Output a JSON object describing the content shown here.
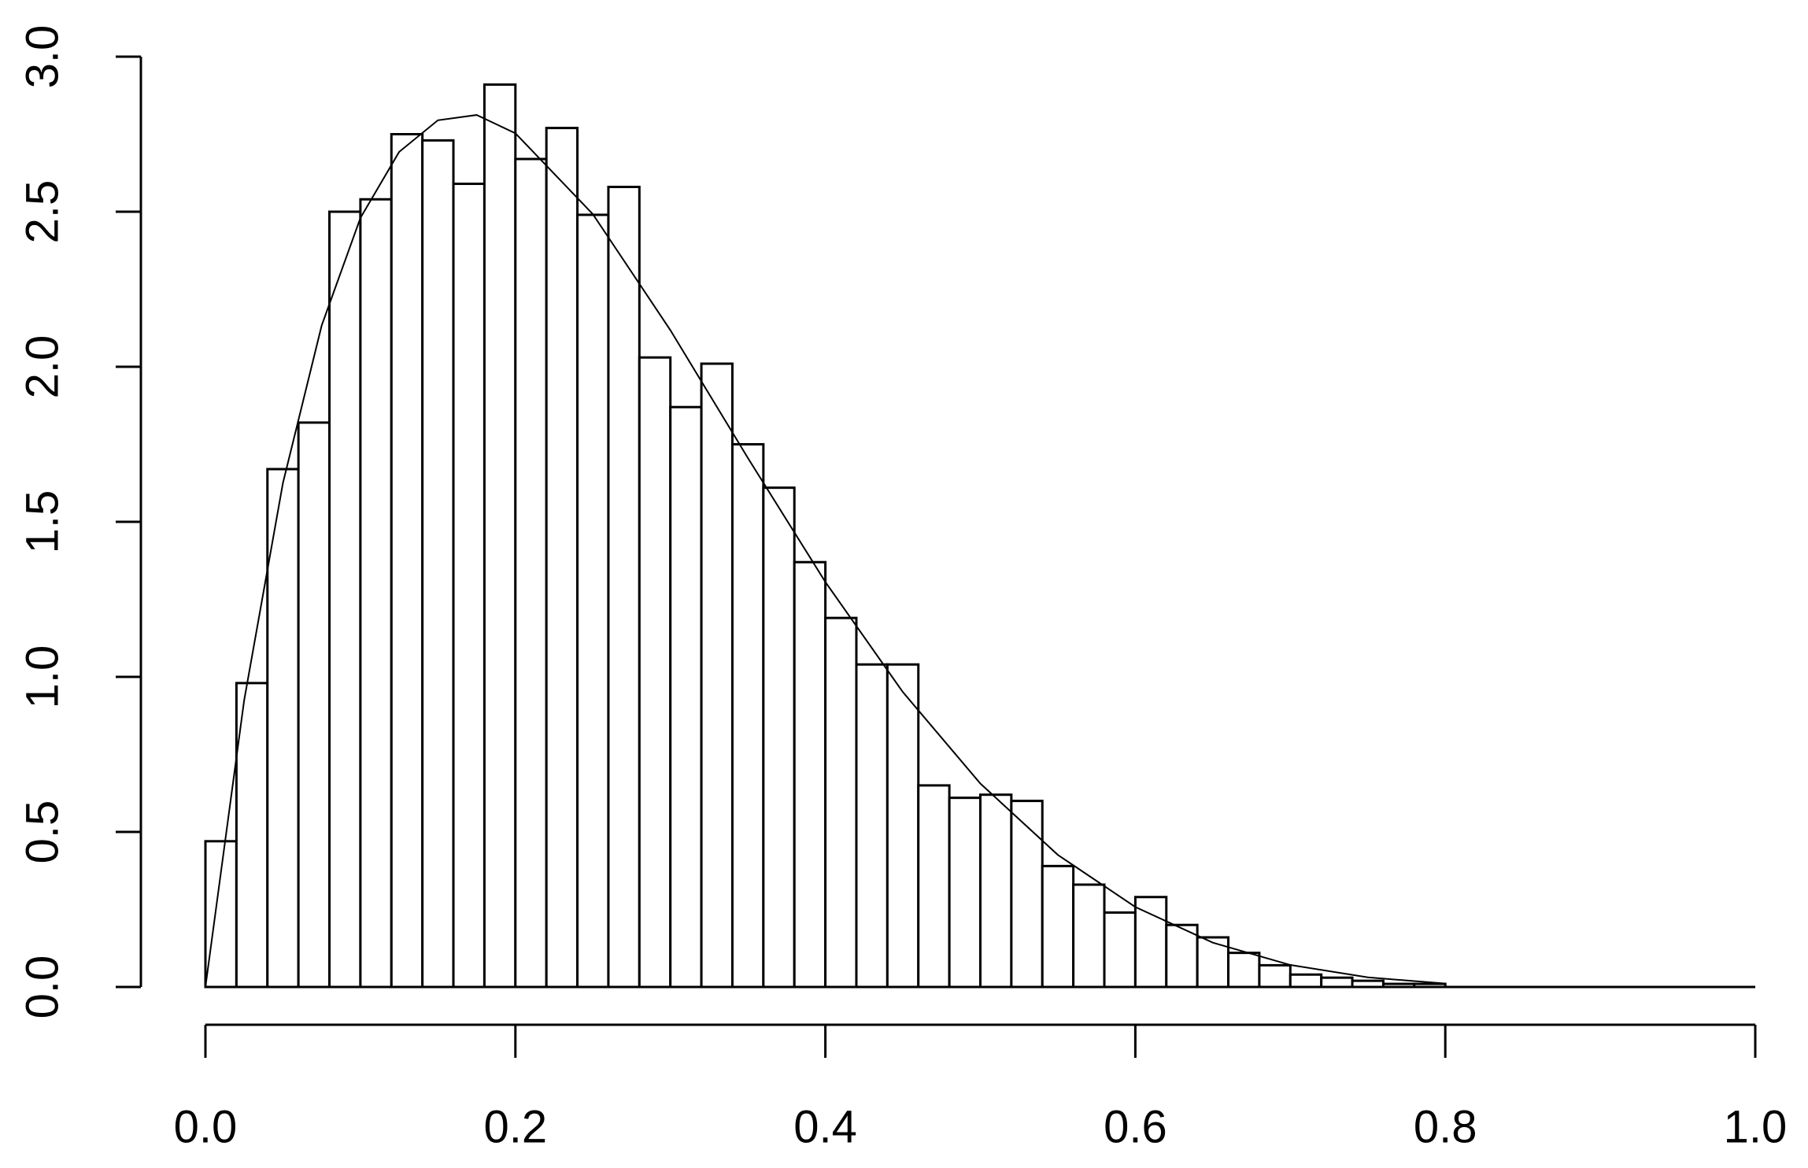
{
  "chart_data": {
    "type": "histogram",
    "bins": [
      0,
      0.02,
      0.04,
      0.06,
      0.08,
      0.1,
      0.12,
      0.14,
      0.16,
      0.18,
      0.2,
      0.22,
      0.24,
      0.26,
      0.28,
      0.3,
      0.32,
      0.34,
      0.36,
      0.38,
      0.4,
      0.42,
      0.44,
      0.46,
      0.48,
      0.5,
      0.52,
      0.54,
      0.56,
      0.58,
      0.6,
      0.62,
      0.64,
      0.66,
      0.68,
      0.7,
      0.72,
      0.74,
      0.76,
      0.78,
      0.8
    ],
    "values": [
      0.47,
      0.98,
      1.67,
      1.82,
      2.5,
      2.54,
      2.75,
      2.73,
      2.59,
      2.91,
      2.67,
      2.77,
      2.49,
      2.58,
      2.03,
      1.87,
      2.01,
      1.75,
      1.61,
      1.37,
      1.19,
      1.04,
      1.04,
      0.65,
      0.61,
      0.62,
      0.6,
      0.39,
      0.33,
      0.24,
      0.29,
      0.2,
      0.16,
      0.11,
      0.07,
      0.04,
      0.03,
      0.02,
      0.01,
      0.01
    ],
    "color": "#ffffff",
    "curve": {
      "x": [
        0,
        0.025,
        0.05,
        0.075,
        0.1,
        0.125,
        0.15,
        0.175,
        0.2,
        0.25,
        0.3,
        0.35,
        0.4,
        0.45,
        0.5,
        0.55,
        0.6,
        0.65,
        0.7,
        0.75,
        0.8
      ],
      "values": [
        0,
        0.925,
        1.625,
        2.133,
        2.48,
        2.693,
        2.795,
        2.812,
        2.753,
        2.492,
        2.118,
        1.706,
        1.306,
        0.951,
        0.656,
        0.426,
        0.258,
        0.143,
        0.071,
        0.031,
        0.011
      ],
      "color": "#000000"
    },
    "xlim": [
      0,
      1
    ],
    "xticks": [
      {
        "value": 0,
        "label": "0.0"
      },
      {
        "value": 0.2,
        "label": "0.2"
      },
      {
        "value": 0.4,
        "label": "0.4"
      },
      {
        "value": 0.6,
        "label": "0.6"
      },
      {
        "value": 0.8,
        "label": "0.8"
      },
      {
        "value": 1,
        "label": "1.0"
      }
    ],
    "ylim": [
      0,
      3
    ],
    "yticks": [
      {
        "value": 0,
        "label": "0.0"
      },
      {
        "value": 0.5,
        "label": "0.5"
      },
      {
        "value": 1,
        "label": "1.0"
      },
      {
        "value": 1.5,
        "label": "1.5"
      },
      {
        "value": 2,
        "label": "2.0"
      },
      {
        "value": 2.5,
        "label": "2.5"
      },
      {
        "value": 3,
        "label": "3.0"
      }
    ],
    "grid": false
  }
}
